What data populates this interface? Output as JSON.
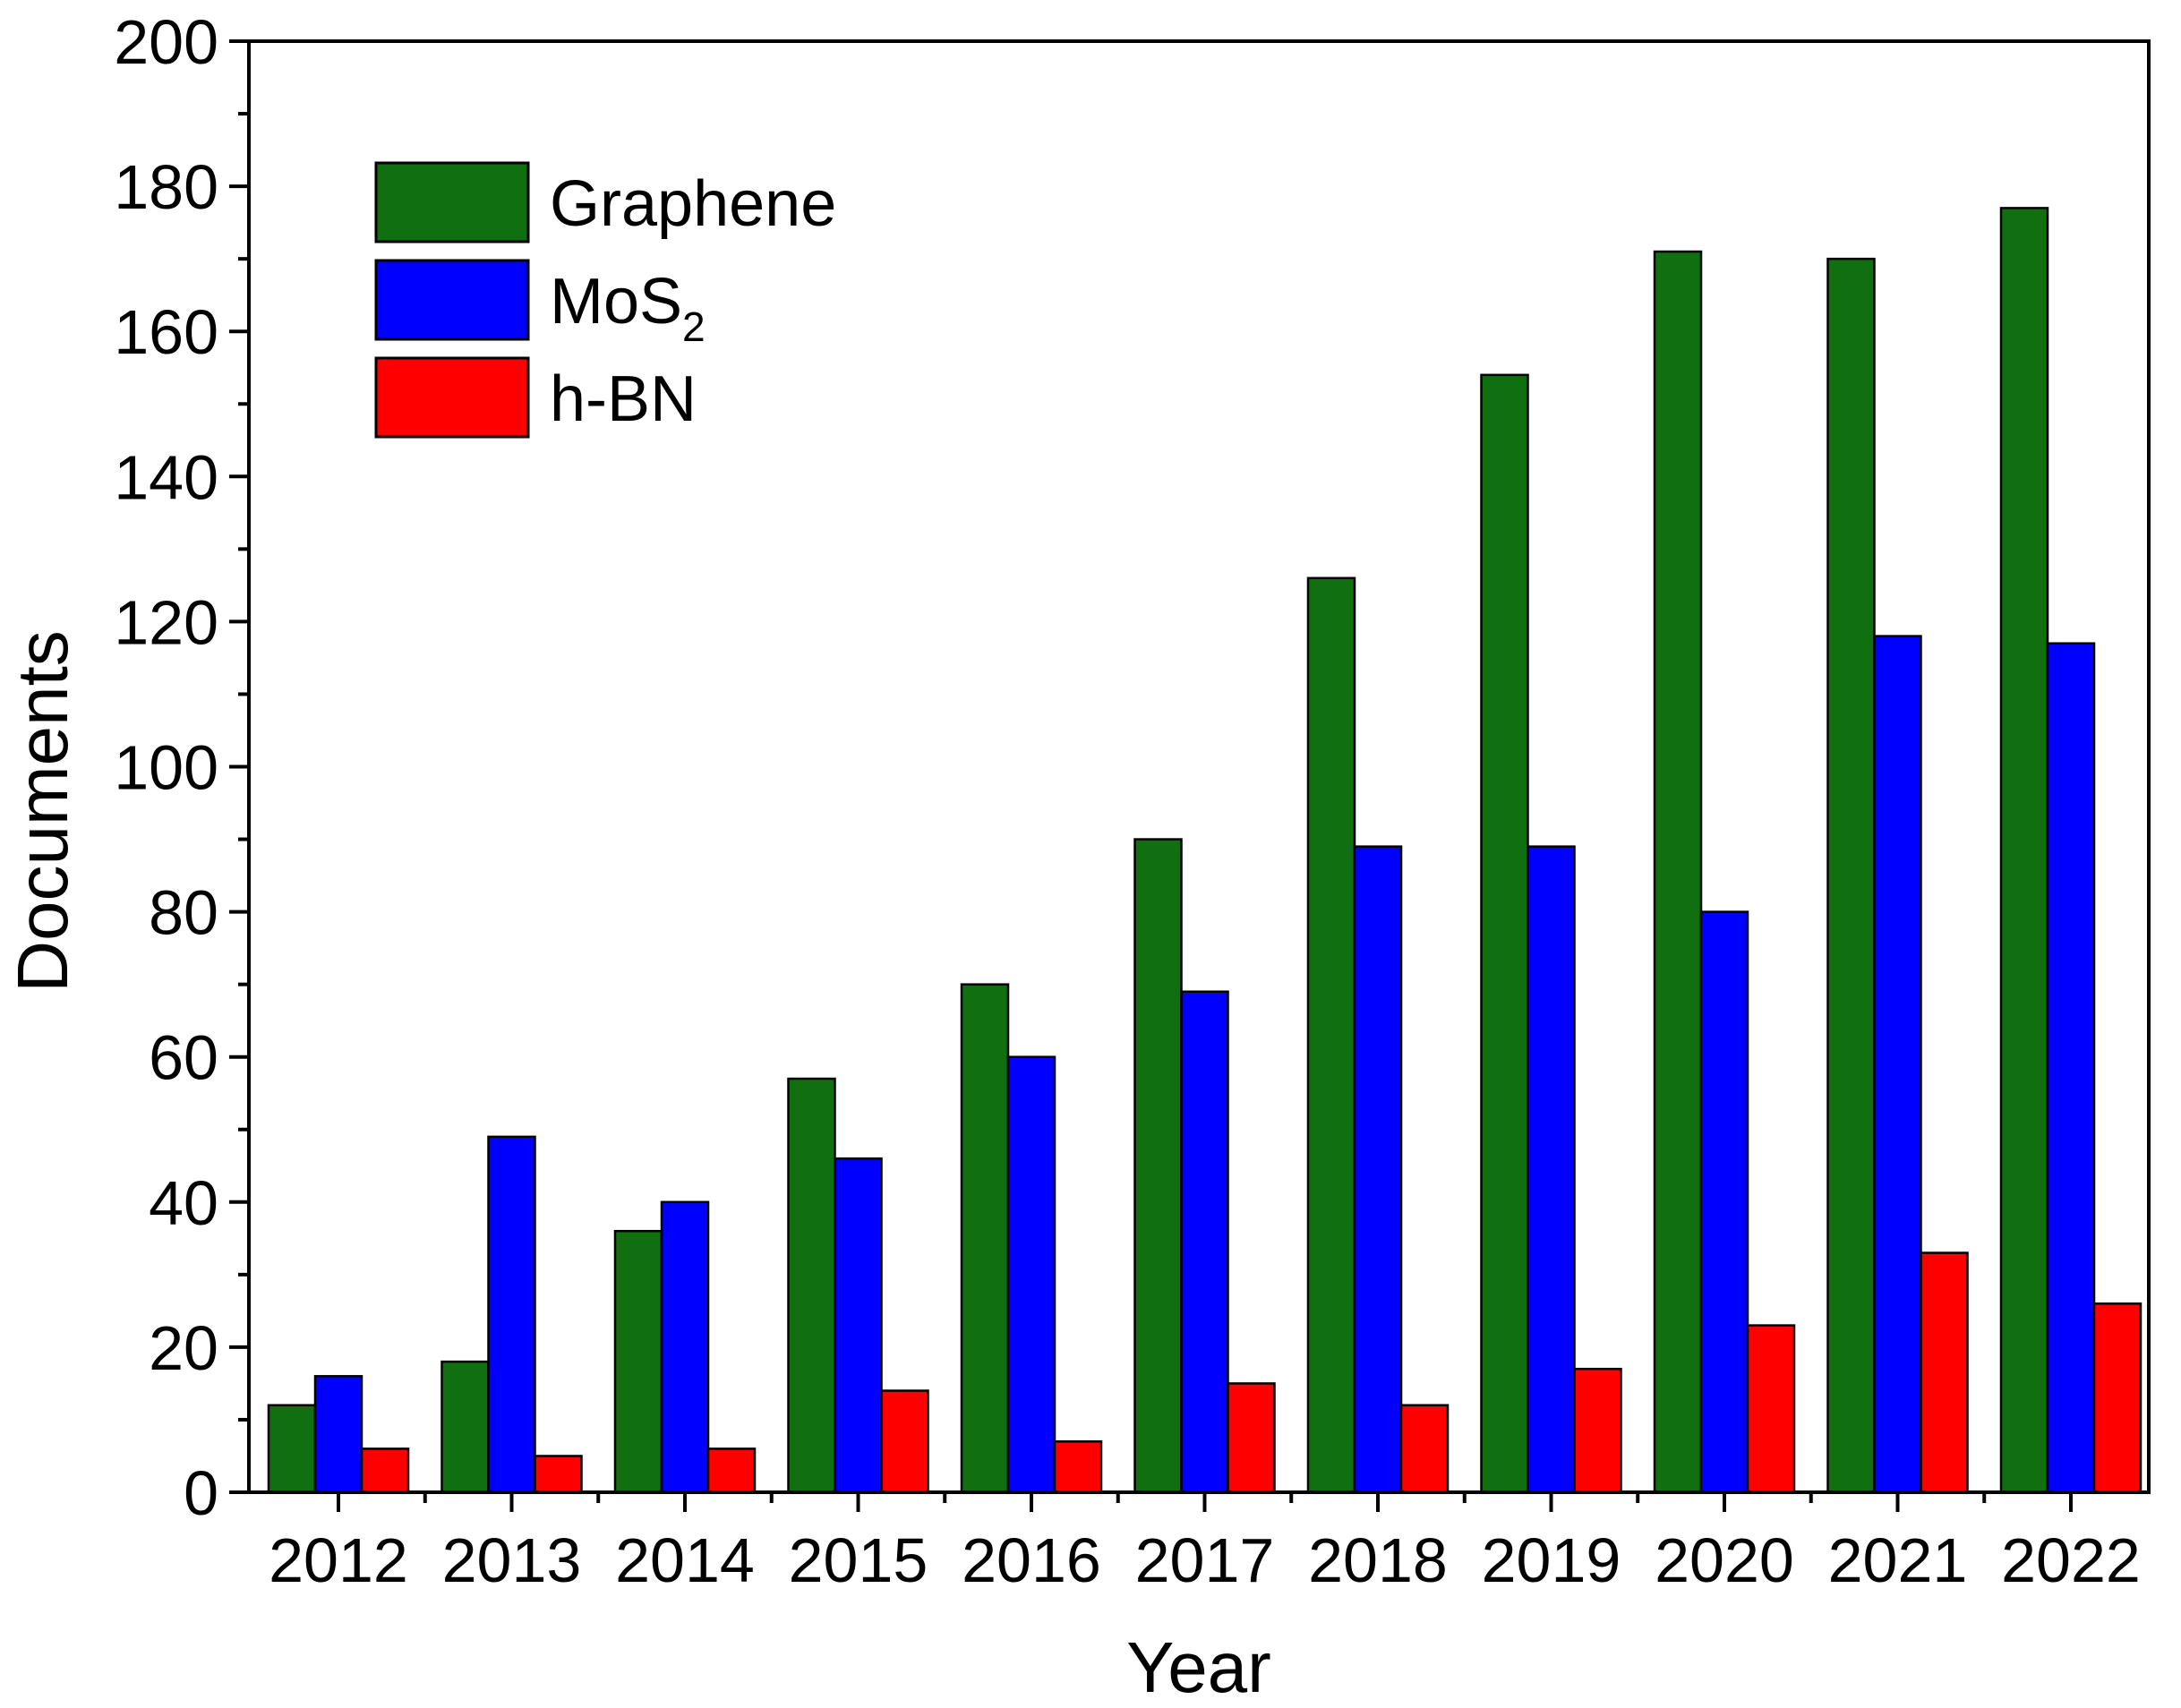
{
  "chart_data": {
    "type": "bar",
    "title": "",
    "xlabel": "Year",
    "ylabel": "Documents",
    "ylim": [
      0,
      200
    ],
    "y_major_ticks": [
      0,
      20,
      40,
      60,
      80,
      100,
      120,
      140,
      160,
      180,
      200
    ],
    "categories": [
      "2012",
      "2013",
      "2014",
      "2015",
      "2016",
      "2017",
      "2018",
      "2019",
      "2020",
      "2021",
      "2022"
    ],
    "series": [
      {
        "name": "Graphene",
        "label_main": "Graphene",
        "label_sub": "",
        "color": "#107010",
        "values": [
          12,
          18,
          36,
          57,
          70,
          90,
          126,
          154,
          171,
          170,
          177
        ]
      },
      {
        "name": "MoS2",
        "label_main": "MoS",
        "label_sub": "2",
        "color": "#0000ff",
        "values": [
          16,
          49,
          40,
          46,
          60,
          69,
          89,
          89,
          80,
          118,
          117
        ]
      },
      {
        "name": "h-BN",
        "label_main": "h-BN",
        "label_sub": "",
        "color": "#ff0000",
        "values": [
          6,
          5,
          6,
          14,
          7,
          15,
          12,
          17,
          23,
          33,
          26
        ]
      }
    ],
    "legend_position": "top-left",
    "grid": false
  }
}
